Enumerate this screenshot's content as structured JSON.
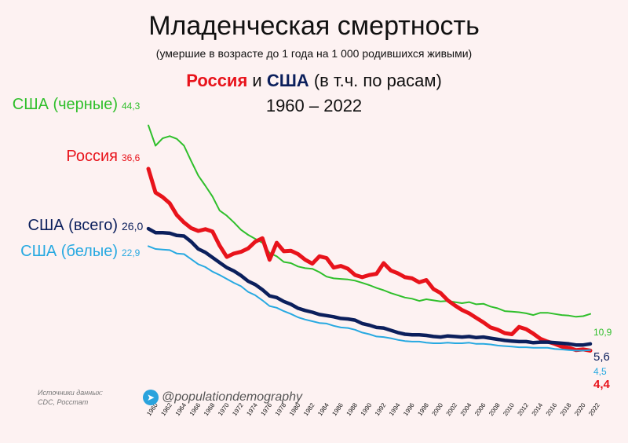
{
  "header": {
    "title": "Младенческая смертность",
    "subtitle": "(умершие в возрасте до 1 года на 1 000 родившихся живыми)",
    "title_russia": "Россия",
    "title_and": " и ",
    "title_usa": "США",
    "title_races": " (в т.ч. по расам)",
    "period": "1960 – 2022"
  },
  "footer": {
    "sources_line1": "Источники данных:",
    "sources_line2": "CDC, Росстат",
    "handle": "@populationdemography",
    "handle_icon": "telegram-icon"
  },
  "chart_data": {
    "type": "line",
    "title": "Младенческая смертность",
    "xlabel": "",
    "ylabel": "",
    "xlim": [
      1960,
      2022
    ],
    "ylim": [
      0,
      48
    ],
    "grid": false,
    "legend": "inline-labels",
    "x_ticks": [
      1960,
      1962,
      1964,
      1966,
      1968,
      1970,
      1972,
      1974,
      1976,
      1978,
      1980,
      1982,
      1984,
      1986,
      1988,
      1990,
      1992,
      1994,
      1996,
      1998,
      2000,
      2002,
      2004,
      2006,
      2008,
      2010,
      2012,
      2014,
      2016,
      2018,
      2020,
      2022
    ],
    "series": [
      {
        "name": "США (черные)",
        "color": "#2fbf2b",
        "start_label": "44,3",
        "end_label": "10,9",
        "points": [
          [
            1960,
            44.3
          ],
          [
            1961,
            40.7
          ],
          [
            1962,
            42.0
          ],
          [
            1963,
            42.4
          ],
          [
            1964,
            41.9
          ],
          [
            1965,
            40.7
          ],
          [
            1966,
            38.0
          ],
          [
            1967,
            35.4
          ],
          [
            1968,
            33.6
          ],
          [
            1969,
            31.7
          ],
          [
            1970,
            29.2
          ],
          [
            1971,
            28.3
          ],
          [
            1972,
            27.1
          ],
          [
            1973,
            25.8
          ],
          [
            1974,
            24.9
          ],
          [
            1975,
            24.2
          ],
          [
            1976,
            23.5
          ],
          [
            1977,
            21.7
          ],
          [
            1978,
            21.1
          ],
          [
            1979,
            20.1
          ],
          [
            1980,
            19.9
          ],
          [
            1981,
            19.3
          ],
          [
            1982,
            19.0
          ],
          [
            1983,
            18.9
          ],
          [
            1984,
            18.3
          ],
          [
            1985,
            17.5
          ],
          [
            1986,
            17.2
          ],
          [
            1987,
            17.1
          ],
          [
            1988,
            17.0
          ],
          [
            1989,
            16.8
          ],
          [
            1990,
            16.4
          ],
          [
            1991,
            16.0
          ],
          [
            1992,
            15.5
          ],
          [
            1993,
            15.1
          ],
          [
            1994,
            14.6
          ],
          [
            1995,
            14.2
          ],
          [
            1996,
            13.8
          ],
          [
            1997,
            13.6
          ],
          [
            1998,
            13.2
          ],
          [
            1999,
            13.5
          ],
          [
            2000,
            13.3
          ],
          [
            2001,
            13.1
          ],
          [
            2002,
            13.2
          ],
          [
            2003,
            13.0
          ],
          [
            2004,
            12.8
          ],
          [
            2005,
            13.0
          ],
          [
            2006,
            12.6
          ],
          [
            2007,
            12.7
          ],
          [
            2008,
            12.2
          ],
          [
            2009,
            11.9
          ],
          [
            2010,
            11.4
          ],
          [
            2011,
            11.3
          ],
          [
            2012,
            11.2
          ],
          [
            2013,
            11.0
          ],
          [
            2014,
            10.7
          ],
          [
            2015,
            11.1
          ],
          [
            2016,
            11.1
          ],
          [
            2017,
            10.9
          ],
          [
            2018,
            10.7
          ],
          [
            2019,
            10.6
          ],
          [
            2020,
            10.4
          ],
          [
            2021,
            10.5
          ],
          [
            2022,
            10.9
          ]
        ]
      },
      {
        "name": "Россия",
        "color": "#e8131b",
        "start_label": "36,6",
        "end_label": "4,4",
        "points": [
          [
            1960,
            36.6
          ],
          [
            1961,
            32.4
          ],
          [
            1962,
            31.6
          ],
          [
            1963,
            30.5
          ],
          [
            1964,
            28.4
          ],
          [
            1965,
            27.1
          ],
          [
            1966,
            26.1
          ],
          [
            1967,
            25.6
          ],
          [
            1968,
            25.9
          ],
          [
            1969,
            25.5
          ],
          [
            1970,
            23.0
          ],
          [
            1971,
            21.0
          ],
          [
            1972,
            21.6
          ],
          [
            1973,
            21.9
          ],
          [
            1974,
            22.5
          ],
          [
            1975,
            23.7
          ],
          [
            1976,
            24.3
          ],
          [
            1977,
            20.5
          ],
          [
            1978,
            23.5
          ],
          [
            1979,
            22.0
          ],
          [
            1980,
            22.1
          ],
          [
            1981,
            21.5
          ],
          [
            1982,
            20.5
          ],
          [
            1983,
            19.8
          ],
          [
            1984,
            21.1
          ],
          [
            1985,
            20.8
          ],
          [
            1986,
            19.1
          ],
          [
            1987,
            19.4
          ],
          [
            1988,
            18.9
          ],
          [
            1989,
            17.8
          ],
          [
            1990,
            17.4
          ],
          [
            1991,
            17.8
          ],
          [
            1992,
            18.0
          ],
          [
            1993,
            19.9
          ],
          [
            1994,
            18.6
          ],
          [
            1995,
            18.1
          ],
          [
            1996,
            17.4
          ],
          [
            1997,
            17.2
          ],
          [
            1998,
            16.5
          ],
          [
            1999,
            16.9
          ],
          [
            2000,
            15.3
          ],
          [
            2001,
            14.6
          ],
          [
            2002,
            13.3
          ],
          [
            2003,
            12.4
          ],
          [
            2004,
            11.6
          ],
          [
            2005,
            11.0
          ],
          [
            2006,
            10.2
          ],
          [
            2007,
            9.4
          ],
          [
            2008,
            8.5
          ],
          [
            2009,
            8.1
          ],
          [
            2010,
            7.5
          ],
          [
            2011,
            7.3
          ],
          [
            2012,
            8.6
          ],
          [
            2013,
            8.2
          ],
          [
            2014,
            7.4
          ],
          [
            2015,
            6.5
          ],
          [
            2016,
            6.0
          ],
          [
            2017,
            5.6
          ],
          [
            2018,
            5.1
          ],
          [
            2019,
            4.9
          ],
          [
            2020,
            4.5
          ],
          [
            2021,
            4.6
          ],
          [
            2022,
            4.4
          ]
        ]
      },
      {
        "name": "США (всего)",
        "color": "#0b1f5c",
        "start_label": "26,0",
        "end_label": "5,6",
        "points": [
          [
            1960,
            26.0
          ],
          [
            1961,
            25.3
          ],
          [
            1962,
            25.3
          ],
          [
            1963,
            25.2
          ],
          [
            1964,
            24.8
          ],
          [
            1965,
            24.7
          ],
          [
            1966,
            23.7
          ],
          [
            1967,
            22.4
          ],
          [
            1968,
            21.8
          ],
          [
            1969,
            20.9
          ],
          [
            1970,
            20.0
          ],
          [
            1971,
            19.1
          ],
          [
            1972,
            18.5
          ],
          [
            1973,
            17.7
          ],
          [
            1974,
            16.7
          ],
          [
            1975,
            16.1
          ],
          [
            1976,
            15.2
          ],
          [
            1977,
            14.1
          ],
          [
            1978,
            13.8
          ],
          [
            1979,
            13.1
          ],
          [
            1980,
            12.6
          ],
          [
            1981,
            11.9
          ],
          [
            1982,
            11.5
          ],
          [
            1983,
            11.2
          ],
          [
            1984,
            10.8
          ],
          [
            1985,
            10.6
          ],
          [
            1986,
            10.4
          ],
          [
            1987,
            10.1
          ],
          [
            1988,
            10.0
          ],
          [
            1989,
            9.8
          ],
          [
            1990,
            9.2
          ],
          [
            1991,
            8.9
          ],
          [
            1992,
            8.5
          ],
          [
            1993,
            8.4
          ],
          [
            1994,
            8.0
          ],
          [
            1995,
            7.6
          ],
          [
            1996,
            7.3
          ],
          [
            1997,
            7.2
          ],
          [
            1998,
            7.2
          ],
          [
            1999,
            7.1
          ],
          [
            2000,
            6.9
          ],
          [
            2001,
            6.8
          ],
          [
            2002,
            7.0
          ],
          [
            2003,
            6.9
          ],
          [
            2004,
            6.8
          ],
          [
            2005,
            6.9
          ],
          [
            2006,
            6.7
          ],
          [
            2007,
            6.8
          ],
          [
            2008,
            6.6
          ],
          [
            2009,
            6.4
          ],
          [
            2010,
            6.2
          ],
          [
            2011,
            6.1
          ],
          [
            2012,
            6.0
          ],
          [
            2013,
            6.0
          ],
          [
            2014,
            5.8
          ],
          [
            2015,
            5.9
          ],
          [
            2016,
            5.9
          ],
          [
            2017,
            5.8
          ],
          [
            2018,
            5.7
          ],
          [
            2019,
            5.6
          ],
          [
            2020,
            5.4
          ],
          [
            2021,
            5.4
          ],
          [
            2022,
            5.6
          ]
        ]
      },
      {
        "name": "США (белые)",
        "color": "#27a9e1",
        "start_label": "22,9",
        "end_label": "4,5",
        "points": [
          [
            1960,
            22.9
          ],
          [
            1961,
            22.4
          ],
          [
            1962,
            22.3
          ],
          [
            1963,
            22.2
          ],
          [
            1964,
            21.6
          ],
          [
            1965,
            21.5
          ],
          [
            1966,
            20.6
          ],
          [
            1967,
            19.7
          ],
          [
            1968,
            19.2
          ],
          [
            1969,
            18.4
          ],
          [
            1970,
            17.8
          ],
          [
            1971,
            17.1
          ],
          [
            1972,
            16.4
          ],
          [
            1973,
            15.8
          ],
          [
            1974,
            14.8
          ],
          [
            1975,
            14.2
          ],
          [
            1976,
            13.3
          ],
          [
            1977,
            12.3
          ],
          [
            1978,
            12.0
          ],
          [
            1979,
            11.4
          ],
          [
            1980,
            10.9
          ],
          [
            1981,
            10.3
          ],
          [
            1982,
            9.9
          ],
          [
            1983,
            9.6
          ],
          [
            1984,
            9.3
          ],
          [
            1985,
            9.2
          ],
          [
            1986,
            8.8
          ],
          [
            1987,
            8.5
          ],
          [
            1988,
            8.4
          ],
          [
            1989,
            8.1
          ],
          [
            1990,
            7.6
          ],
          [
            1991,
            7.3
          ],
          [
            1992,
            6.9
          ],
          [
            1993,
            6.8
          ],
          [
            1994,
            6.6
          ],
          [
            1995,
            6.3
          ],
          [
            1996,
            6.1
          ],
          [
            1997,
            6.0
          ],
          [
            1998,
            6.0
          ],
          [
            1999,
            5.8
          ],
          [
            2000,
            5.7
          ],
          [
            2001,
            5.7
          ],
          [
            2002,
            5.8
          ],
          [
            2003,
            5.7
          ],
          [
            2004,
            5.7
          ],
          [
            2005,
            5.8
          ],
          [
            2006,
            5.6
          ],
          [
            2007,
            5.6
          ],
          [
            2008,
            5.5
          ],
          [
            2009,
            5.3
          ],
          [
            2010,
            5.2
          ],
          [
            2011,
            5.1
          ],
          [
            2012,
            5.0
          ],
          [
            2013,
            5.0
          ],
          [
            2014,
            4.9
          ],
          [
            2015,
            4.9
          ],
          [
            2016,
            4.9
          ],
          [
            2017,
            4.7
          ],
          [
            2018,
            4.6
          ],
          [
            2019,
            4.5
          ],
          [
            2020,
            4.4
          ],
          [
            2021,
            4.4
          ],
          [
            2022,
            4.5
          ]
        ]
      }
    ]
  }
}
